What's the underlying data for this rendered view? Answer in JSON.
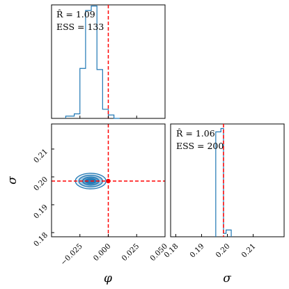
{
  "chart_data": {
    "type": "corner",
    "parameters": [
      {
        "symbol": "φ",
        "label": "φ"
      },
      {
        "symbol": "σ",
        "label": "σ"
      }
    ],
    "truth": {
      "phi": 0.0,
      "sigma": 0.1985
    },
    "panels": [
      {
        "id": "hist-phi",
        "type": "histogram",
        "parameter": "φ",
        "xlim": [
          -0.05,
          0.05
        ],
        "bin_edges": [
          -0.0375,
          -0.03,
          -0.025,
          -0.02,
          -0.015,
          -0.01,
          -0.005,
          0.0,
          0.005,
          0.01
        ],
        "heights": [
          0.02,
          0.04,
          0.44,
          0.95,
          0.99,
          0.43,
          0.08,
          0.03,
          0.0
        ],
        "stats": {
          "rhat": "R̂ = 1.09",
          "ess": "ESS = 133"
        }
      },
      {
        "id": "hist-sigma",
        "type": "histogram",
        "parameter": "σ",
        "xlim": [
          0.178,
          0.222
        ],
        "xticks": [
          0.18,
          0.19,
          0.2,
          0.21
        ],
        "xtick_labels": [
          "0.18",
          "0.19",
          "0.20",
          "0.21"
        ],
        "bin_edges": [
          0.1955,
          0.1975,
          0.1985,
          0.1995,
          0.2015
        ],
        "heights": [
          0.93,
          0.96,
          0.03,
          0.06
        ],
        "stats": {
          "rhat": "R̂ = 1.06",
          "ess": "ESS = 200"
        }
      },
      {
        "id": "joint-phi-sigma",
        "type": "contour",
        "xlim": [
          -0.05,
          0.05
        ],
        "ylim": [
          0.1785,
          0.219
        ],
        "xticks": [
          -0.025,
          0.0,
          0.025,
          0.05
        ],
        "xtick_labels": [
          "−0.025",
          "0.000",
          "0.025",
          "0.050"
        ],
        "yticks": [
          0.18,
          0.19,
          0.2,
          0.21
        ],
        "ytick_labels": [
          "0.18",
          "0.19",
          "0.20",
          "0.21"
        ],
        "center": {
          "phi": -0.0155,
          "sigma": 0.1985
        },
        "contour_halfwidths": [
          {
            "phi": 0.0135,
            "sigma": 0.0028
          },
          {
            "phi": 0.0105,
            "sigma": 0.0021
          },
          {
            "phi": 0.0072,
            "sigma": 0.00145
          },
          {
            "phi": 0.0045,
            "sigma": 0.0009
          }
        ]
      }
    ],
    "colors": {
      "line": "#1f77b4",
      "fill": "#1f77b4",
      "truth": "#ff0000"
    }
  }
}
